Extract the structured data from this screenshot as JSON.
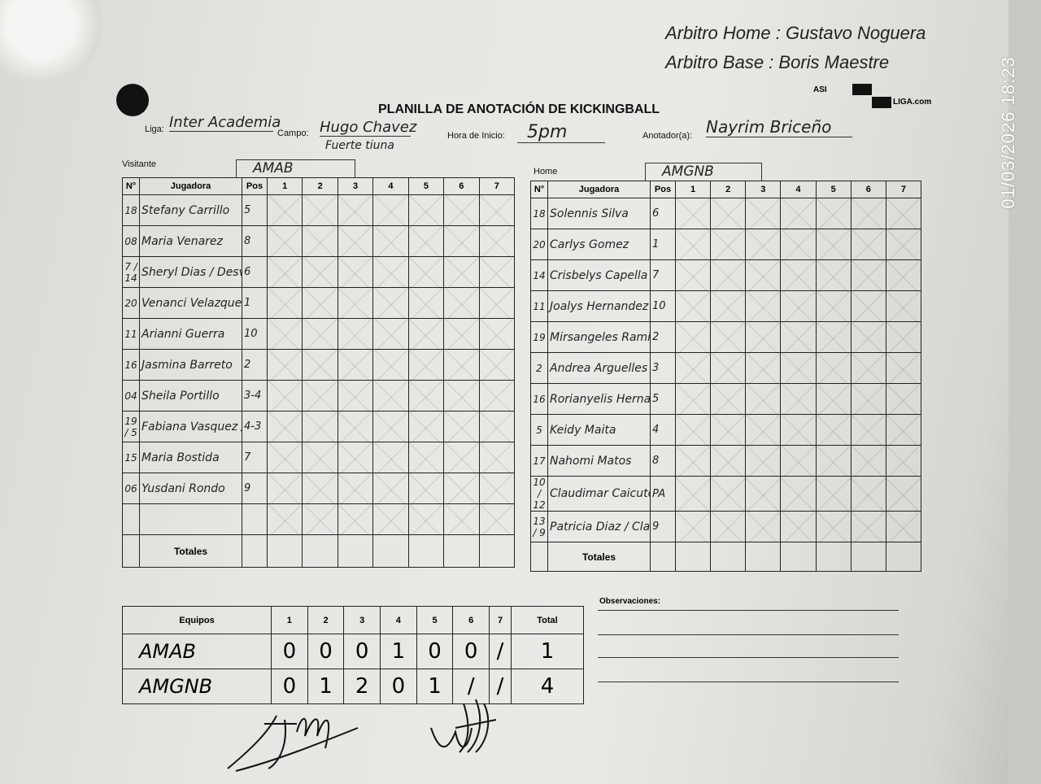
{
  "header": {
    "title": "PLANILLA DE ANOTACIÓN DE KICKINGBALL",
    "referee_home_label": "Arbitro Home :",
    "referee_home": "Gustavo Noguera",
    "referee_base_label": "Arbitro Base :",
    "referee_base": "Boris Maestre",
    "logo_text": "ASI Y ALLIGA.com",
    "liga_label": "Liga:",
    "liga": "Inter Academia",
    "campo_label": "Campo:",
    "campo": "Hugo Chavez",
    "campo_line2": "Fuerte tiuna",
    "hora_label": "Hora de Inicio:",
    "hora": "5pm",
    "anotador_label": "Anotador(a):",
    "anotador": "Nayrim Briceño"
  },
  "timestamp": "01/03/2026 18:23",
  "columns": {
    "num": "N°",
    "player": "Jugadora",
    "pos": "Pos",
    "innings": [
      "1",
      "2",
      "3",
      "4",
      "5",
      "6",
      "7"
    ],
    "totals": "Totales"
  },
  "visitor": {
    "label": "Visitante",
    "team": "AMAB",
    "players": [
      {
        "num": "18",
        "name": "Stefany Carrillo",
        "pos": "5"
      },
      {
        "num": "08",
        "name": "Maria Venarez",
        "pos": "8"
      },
      {
        "num": "7 / 14",
        "name": "Sheryl Dias / Desvionnys Cordero",
        "pos": "6"
      },
      {
        "num": "20",
        "name": "Venanci Velazque",
        "pos": "1"
      },
      {
        "num": "11",
        "name": "Arianni Guerra",
        "pos": "10"
      },
      {
        "num": "16",
        "name": "Jasmina Barreto",
        "pos": "2"
      },
      {
        "num": "04",
        "name": "Sheila Portillo",
        "pos": "3-4"
      },
      {
        "num": "19 / 5",
        "name": "Fabiana Vasquez / Luisana Soto",
        "pos": "4-3"
      },
      {
        "num": "15",
        "name": "Maria Bostida",
        "pos": "7"
      },
      {
        "num": "06",
        "name": "Yusdani Rondo",
        "pos": "9"
      },
      {
        "num": "",
        "name": "",
        "pos": ""
      }
    ]
  },
  "home": {
    "label": "Home",
    "team": "AMGNB",
    "players": [
      {
        "num": "18",
        "name": "Solennis Silva",
        "pos": "6"
      },
      {
        "num": "20",
        "name": "Carlys Gomez",
        "pos": "1"
      },
      {
        "num": "14",
        "name": "Crisbelys Capella",
        "pos": "7"
      },
      {
        "num": "11",
        "name": "Joalys Hernandez",
        "pos": "10"
      },
      {
        "num": "19",
        "name": "Mirsangeles Ramirez",
        "pos": "2"
      },
      {
        "num": "2",
        "name": "Andrea Arguelles",
        "pos": "3"
      },
      {
        "num": "16",
        "name": "Rorianyelis Hernandez",
        "pos": "5"
      },
      {
        "num": "5",
        "name": "Keidy Maita",
        "pos": "4"
      },
      {
        "num": "17",
        "name": "Nahomi Matos",
        "pos": "8"
      },
      {
        "num": "10 / 12",
        "name": "Claudimar Caicuto / Patricia Alvarez",
        "pos": "PA"
      },
      {
        "num": "13 / 9",
        "name": "Patricia Diaz / Clarent Leon",
        "pos": "9"
      }
    ]
  },
  "scoreboard": {
    "team_header": "Equipos",
    "innings": [
      "1",
      "2",
      "3",
      "4",
      "5",
      "6",
      "7"
    ],
    "total_header": "Total",
    "rows": [
      {
        "team": "AMAB",
        "runs": [
          "0",
          "0",
          "0",
          "1",
          "0",
          "0",
          "/"
        ],
        "total": "1"
      },
      {
        "team": "AMGNB",
        "runs": [
          "0",
          "1",
          "2",
          "0",
          "1",
          "/",
          "/"
        ],
        "total": "4"
      }
    ]
  },
  "observaciones_label": "Observaciones:"
}
